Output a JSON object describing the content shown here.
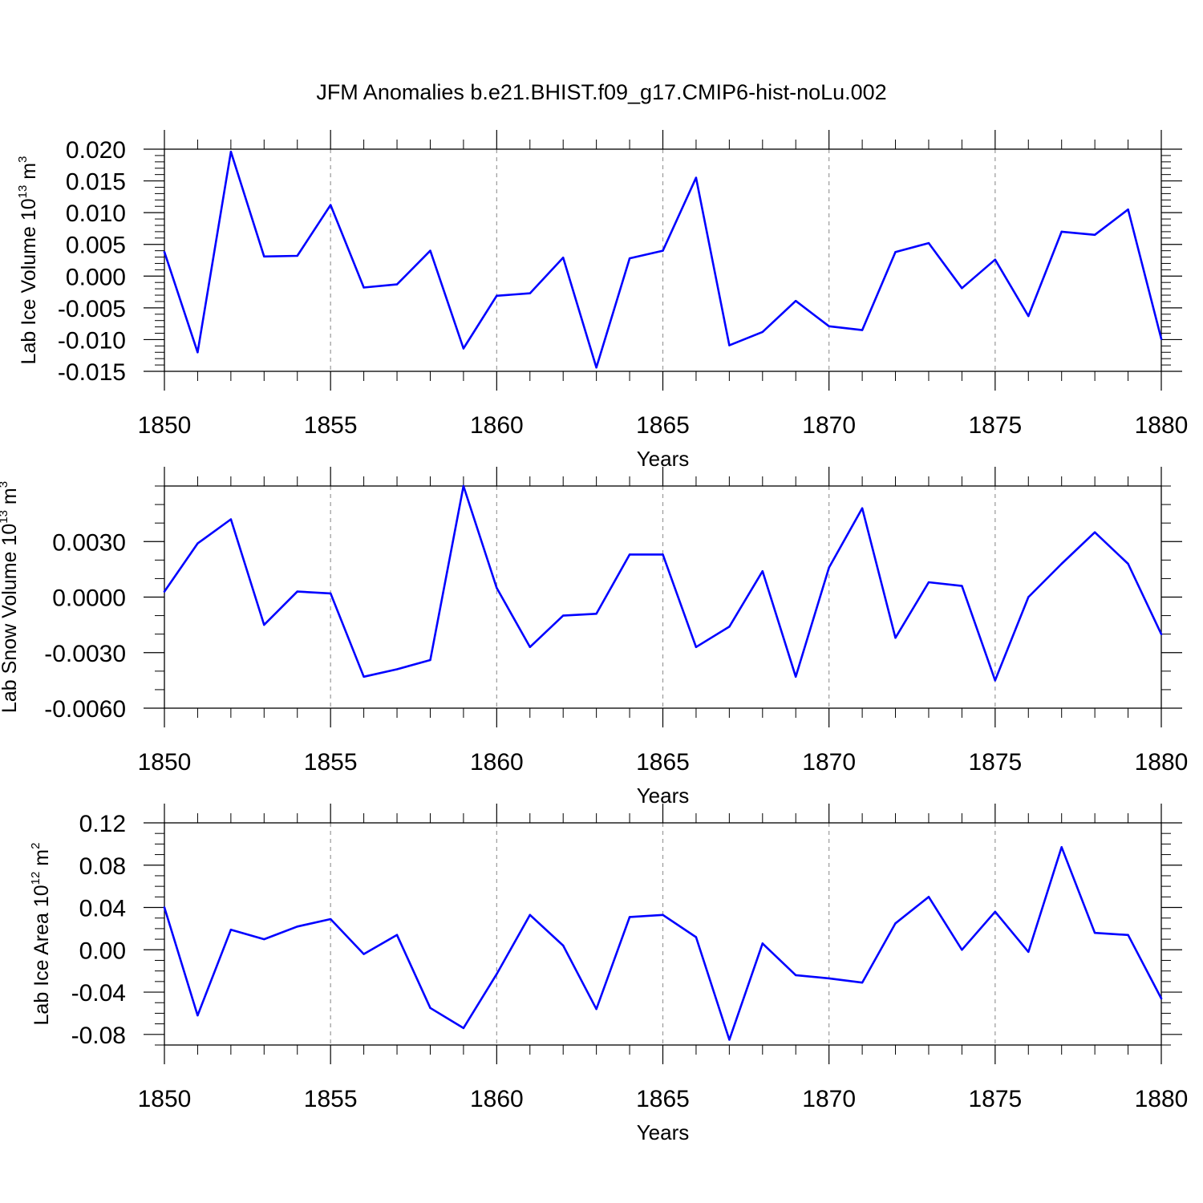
{
  "title": "JFM Anomalies b.e21.BHIST.f09_g17.CMIP6-hist-noLu.002",
  "colors": {
    "line": "#0000ff",
    "axis": "#000000",
    "grid": "#999999"
  },
  "chart_data": [
    {
      "type": "line",
      "ylabel": "Lab Ice Volume 10",
      "ylabel_exp": "13",
      "ylabel_unit": " m",
      "ylabel_unit_exp": "3",
      "xlabel": "Years",
      "xlim": [
        1850,
        1880
      ],
      "ylim": [
        -0.015,
        0.02
      ],
      "yticks": [
        -0.015,
        -0.01,
        -0.005,
        0.0,
        0.005,
        0.01,
        0.015,
        0.02
      ],
      "ytick_labels": [
        "-0.015",
        "-0.010",
        "-0.005",
        "0.000",
        "0.005",
        "0.010",
        "0.015",
        "0.020"
      ],
      "yminor": 0.001,
      "xticks": [
        1850,
        1855,
        1860,
        1865,
        1870,
        1875,
        1880
      ],
      "xtick_labels": [
        "1850",
        "1855",
        "1860",
        "1865",
        "1870",
        "1875",
        "1880"
      ],
      "series": [
        {
          "name": "Lab Ice Volume",
          "x": [
            1850,
            1851,
            1852,
            1853,
            1854,
            1855,
            1856,
            1857,
            1858,
            1859,
            1860,
            1861,
            1862,
            1863,
            1864,
            1865,
            1866,
            1867,
            1868,
            1869,
            1870,
            1871,
            1872,
            1873,
            1874,
            1875,
            1876,
            1877,
            1878,
            1879,
            1880
          ],
          "values": [
            0.0038,
            -0.012,
            0.0196,
            0.0031,
            0.0032,
            0.0112,
            -0.0018,
            -0.0013,
            0.004,
            -0.0114,
            -0.0031,
            -0.0027,
            0.0029,
            -0.0144,
            0.0028,
            0.004,
            0.0155,
            -0.0109,
            -0.0088,
            -0.0039,
            -0.0079,
            -0.0085,
            0.0038,
            0.0052,
            -0.0019,
            0.0026,
            -0.0063,
            0.007,
            0.0065,
            0.0105,
            -0.0099
          ]
        }
      ]
    },
    {
      "type": "line",
      "ylabel": "Lab Snow Volume 10",
      "ylabel_exp": "13",
      "ylabel_unit": " m",
      "ylabel_unit_exp": "3",
      "xlabel": "Years",
      "xlim": [
        1850,
        1880
      ],
      "ylim": [
        -0.006,
        0.006
      ],
      "yticks": [
        -0.006,
        -0.003,
        0.0,
        0.003
      ],
      "ytick_labels": [
        "-0.0060",
        "-0.0030",
        "0.0000",
        "0.0030"
      ],
      "yminor": 0.001,
      "xticks": [
        1850,
        1855,
        1860,
        1865,
        1870,
        1875,
        1880
      ],
      "xtick_labels": [
        "1850",
        "1855",
        "1860",
        "1865",
        "1870",
        "1875",
        "1880"
      ],
      "series": [
        {
          "name": "Lab Snow Volume",
          "x": [
            1850,
            1851,
            1852,
            1853,
            1854,
            1855,
            1856,
            1857,
            1858,
            1859,
            1860,
            1861,
            1862,
            1863,
            1864,
            1865,
            1866,
            1867,
            1868,
            1869,
            1870,
            1871,
            1872,
            1873,
            1874,
            1875,
            1876,
            1877,
            1878,
            1879,
            1880
          ],
          "values": [
            0.0003,
            0.0029,
            0.0042,
            -0.0015,
            0.0003,
            0.0002,
            -0.0043,
            -0.0039,
            -0.0034,
            0.006,
            0.0005,
            -0.0027,
            -0.001,
            -0.0009,
            0.0023,
            0.0023,
            -0.0027,
            -0.0016,
            0.0014,
            -0.0043,
            0.0016,
            0.0048,
            -0.0022,
            0.0008,
            0.0006,
            -0.0045,
            0.0,
            0.0018,
            0.0035,
            0.0018,
            -0.002
          ]
        }
      ]
    },
    {
      "type": "line",
      "ylabel": "Lab Ice Area 10",
      "ylabel_exp": "12",
      "ylabel_unit": " m",
      "ylabel_unit_exp": "2",
      "xlabel": "Years",
      "xlim": [
        1850,
        1880
      ],
      "ylim": [
        -0.09,
        0.12
      ],
      "yticks": [
        -0.08,
        -0.04,
        0.0,
        0.04,
        0.08,
        0.12
      ],
      "ytick_labels": [
        "-0.08",
        "-0.04",
        "0.00",
        "0.04",
        "0.08",
        "0.12"
      ],
      "yminor": 0.01,
      "xticks": [
        1850,
        1855,
        1860,
        1865,
        1870,
        1875,
        1880
      ],
      "xtick_labels": [
        "1850",
        "1855",
        "1860",
        "1865",
        "1870",
        "1875",
        "1880"
      ],
      "series": [
        {
          "name": "Lab Ice Area",
          "x": [
            1850,
            1851,
            1852,
            1853,
            1854,
            1855,
            1856,
            1857,
            1858,
            1859,
            1860,
            1861,
            1862,
            1863,
            1864,
            1865,
            1866,
            1867,
            1868,
            1869,
            1870,
            1871,
            1872,
            1873,
            1874,
            1875,
            1876,
            1877,
            1878,
            1879,
            1880
          ],
          "values": [
            0.04,
            -0.062,
            0.019,
            0.01,
            0.022,
            0.029,
            -0.004,
            0.014,
            -0.055,
            -0.074,
            -0.023,
            0.033,
            0.004,
            -0.056,
            0.031,
            0.033,
            0.012,
            -0.085,
            0.006,
            -0.024,
            -0.027,
            -0.031,
            0.025,
            0.05,
            0.0,
            0.036,
            -0.002,
            0.097,
            0.016,
            0.014,
            -0.046
          ]
        }
      ]
    }
  ]
}
